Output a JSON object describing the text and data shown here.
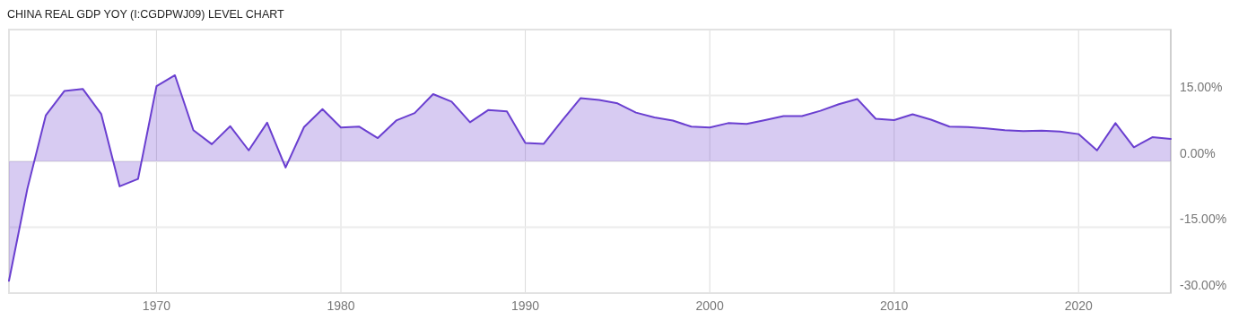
{
  "chart_data": {
    "type": "area",
    "title": "CHINA REAL GDP YOY (I:CGDPWJ09) LEVEL CHART",
    "x": [
      1962,
      1963,
      1964,
      1965,
      1966,
      1967,
      1968,
      1969,
      1970,
      1971,
      1972,
      1973,
      1974,
      1975,
      1976,
      1977,
      1978,
      1979,
      1980,
      1981,
      1982,
      1983,
      1984,
      1985,
      1986,
      1987,
      1988,
      1989,
      1990,
      1991,
      1992,
      1993,
      1994,
      1995,
      1996,
      1997,
      1998,
      1999,
      2000,
      2001,
      2002,
      2003,
      2004,
      2005,
      2006,
      2007,
      2008,
      2009,
      2010,
      2011,
      2012,
      2013,
      2014,
      2015,
      2016,
      2017,
      2018,
      2019,
      2020,
      2021,
      2022,
      2023,
      2024,
      2025
    ],
    "series": [
      {
        "color": "#6a3fd0",
        "values": [
          -27.2,
          -6.2,
          10.5,
          16.0,
          16.5,
          10.8,
          -5.7,
          -4.0,
          17.1,
          19.6,
          7.1,
          3.9,
          8.0,
          2.5,
          8.8,
          -1.4,
          7.8,
          11.9,
          7.7,
          7.9,
          5.3,
          9.3,
          11.0,
          15.3,
          13.6,
          8.9,
          11.7,
          11.4,
          4.2,
          4.0,
          9.3,
          14.4,
          14.0,
          13.2,
          11.1,
          10.0,
          9.3,
          7.9,
          7.7,
          8.7,
          8.5,
          9.4,
          10.3,
          10.3,
          11.5,
          13.0,
          14.2,
          9.7,
          9.4,
          10.7,
          9.5,
          7.9,
          7.8,
          7.5,
          7.1,
          6.9,
          7.0,
          6.8,
          6.2,
          2.5,
          8.7,
          3.2,
          5.5,
          5.1
        ]
      }
    ],
    "xlim": [
      1962,
      2025
    ],
    "xticks": [
      1970,
      1980,
      1990,
      2000,
      2010,
      2020
    ],
    "ylim": [
      -30,
      30
    ],
    "yticks": [
      {
        "value": -30,
        "label": "-30.00%"
      },
      {
        "value": -15,
        "label": "-15.00%"
      },
      {
        "value": 0,
        "label": "0.00%"
      },
      {
        "value": 15,
        "label": "15.00%"
      }
    ],
    "grid": true
  }
}
